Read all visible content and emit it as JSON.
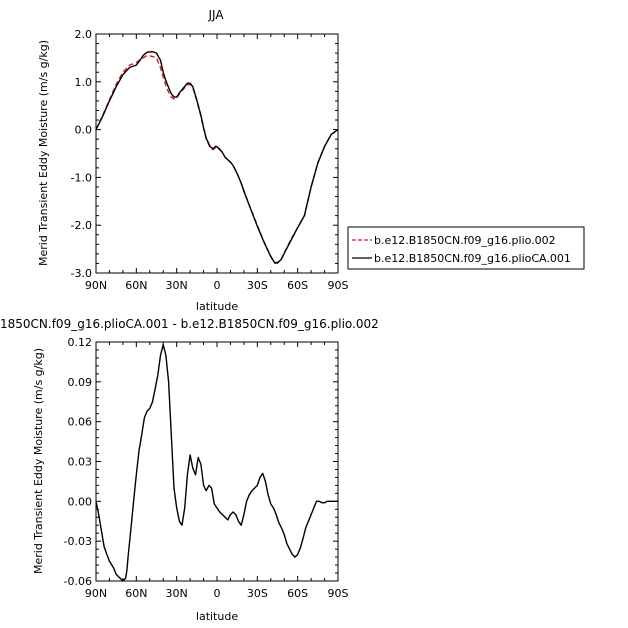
{
  "chart_data": [
    {
      "type": "line",
      "title": "JJA",
      "xlabel": "latitude",
      "ylabel": "Merid Transient Eddy Moisture (m/s g/kg)",
      "xlim": [
        90,
        -90
      ],
      "ylim": [
        -3.0,
        2.0
      ],
      "xticks": [
        90,
        60,
        30,
        0,
        -30,
        -60,
        -90
      ],
      "xtick_labels": [
        "90N",
        "60N",
        "30N",
        "0",
        "30S",
        "60S",
        "90S"
      ],
      "yticks": [
        -3.0,
        -2.0,
        -1.0,
        0.0,
        1.0,
        2.0
      ],
      "ytick_labels": [
        "-3.0",
        "-2.0",
        "-1.0",
        "0.0",
        "1.0",
        "2.0"
      ],
      "legend_position": "right",
      "series": [
        {
          "name": "b.e12.B1850CN.f09_g16.plio.002",
          "color": "#e0141e",
          "dash": "dashed",
          "x": [
            90,
            85,
            80,
            75,
            70,
            65,
            60,
            58,
            55,
            52,
            48,
            45,
            42,
            40,
            38,
            36,
            34,
            32,
            30,
            28,
            25,
            22,
            20,
            18,
            15,
            12,
            10,
            8,
            5,
            3,
            1,
            0,
            -2,
            -4,
            -6,
            -8,
            -10,
            -12,
            -15,
            -18,
            -20,
            -25,
            -30,
            -35,
            -40,
            -43,
            -45,
            -48,
            -50,
            -55,
            -60,
            -65,
            -70,
            -75,
            -80,
            -85,
            -90
          ],
          "y": [
            0.0,
            0.3,
            0.62,
            0.95,
            1.2,
            1.35,
            1.4,
            1.45,
            1.5,
            1.55,
            1.53,
            1.5,
            1.3,
            1.1,
            0.92,
            0.78,
            0.68,
            0.64,
            0.66,
            0.75,
            0.85,
            0.93,
            0.95,
            0.88,
            0.6,
            0.28,
            0.02,
            -0.2,
            -0.38,
            -0.42,
            -0.37,
            -0.37,
            -0.42,
            -0.48,
            -0.58,
            -0.63,
            -0.68,
            -0.75,
            -0.92,
            -1.12,
            -1.28,
            -1.65,
            -2.0,
            -2.35,
            -2.65,
            -2.78,
            -2.78,
            -2.7,
            -2.58,
            -2.3,
            -2.05,
            -1.8,
            -1.2,
            -0.7,
            -0.35,
            -0.1,
            0.0
          ]
        },
        {
          "name": "b.e12.B1850CN.f09_g16.plioCA.001",
          "color": "#000000",
          "dash": "solid",
          "x": [
            90,
            85,
            80,
            75,
            70,
            65,
            60,
            58,
            55,
            52,
            48,
            45,
            42,
            40,
            38,
            36,
            34,
            32,
            30,
            28,
            25,
            22,
            20,
            18,
            15,
            12,
            10,
            8,
            5,
            3,
            1,
            0,
            -2,
            -4,
            -6,
            -8,
            -10,
            -12,
            -15,
            -18,
            -20,
            -25,
            -30,
            -35,
            -40,
            -43,
            -45,
            -48,
            -50,
            -55,
            -60,
            -65,
            -70,
            -75,
            -80,
            -85,
            -90
          ],
          "y": [
            0.0,
            0.28,
            0.6,
            0.9,
            1.15,
            1.3,
            1.35,
            1.42,
            1.55,
            1.62,
            1.63,
            1.6,
            1.45,
            1.2,
            1.02,
            0.88,
            0.75,
            0.68,
            0.68,
            0.77,
            0.87,
            0.97,
            0.97,
            0.9,
            0.62,
            0.3,
            0.04,
            -0.18,
            -0.36,
            -0.4,
            -0.35,
            -0.36,
            -0.41,
            -0.48,
            -0.58,
            -0.63,
            -0.68,
            -0.75,
            -0.92,
            -1.12,
            -1.29,
            -1.66,
            -2.02,
            -2.36,
            -2.66,
            -2.79,
            -2.79,
            -2.71,
            -2.59,
            -2.32,
            -2.05,
            -1.8,
            -1.2,
            -0.7,
            -0.35,
            -0.1,
            0.0
          ]
        }
      ]
    },
    {
      "type": "line",
      "title": "1850CN.f09_g16.plioCA.001 - b.e12.B1850CN.f09_g16.plio.002",
      "xlabel": "latitude",
      "ylabel": "Merid Transient Eddy Moisture (m/s g/kg)",
      "xlim": [
        90,
        -90
      ],
      "ylim": [
        -0.06,
        0.12
      ],
      "xticks": [
        90,
        60,
        30,
        0,
        -30,
        -60,
        -90
      ],
      "xtick_labels": [
        "90N",
        "60N",
        "30N",
        "0",
        "30S",
        "60S",
        "90S"
      ],
      "yticks": [
        -0.06,
        -0.03,
        0.0,
        0.03,
        0.06,
        0.09,
        0.12
      ],
      "ytick_labels": [
        "-0.06",
        "-0.03",
        "0.00",
        "0.03",
        "0.06",
        "0.09",
        "0.12"
      ],
      "series": [
        {
          "color": "#000000",
          "dash": "solid",
          "x": [
            90,
            88,
            86,
            84,
            82,
            80,
            77,
            75,
            72,
            70,
            68,
            67,
            66,
            64,
            62,
            60,
            58,
            56,
            54,
            52,
            50,
            48,
            46,
            44,
            42,
            40,
            38,
            36,
            34,
            32,
            30,
            28,
            26,
            24,
            22,
            20,
            18,
            16,
            14,
            12,
            10,
            8,
            6,
            4,
            2,
            0,
            -2,
            -4,
            -6,
            -8,
            -10,
            -12,
            -14,
            -16,
            -18,
            -20,
            -22,
            -24,
            -26,
            -28,
            -30,
            -32,
            -34,
            -36,
            -38,
            -40,
            -42,
            -44,
            -46,
            -48,
            -50,
            -52,
            -54,
            -56,
            -58,
            -60,
            -62,
            -64,
            -66,
            -68,
            -70,
            -72,
            -74,
            -76,
            -78,
            -80,
            -82,
            -84,
            -86,
            -88,
            -90
          ],
          "y": [
            0.0,
            -0.01,
            -0.022,
            -0.034,
            -0.04,
            -0.045,
            -0.05,
            -0.055,
            -0.058,
            -0.06,
            -0.058,
            -0.052,
            -0.04,
            -0.02,
            0.0,
            0.02,
            0.038,
            0.05,
            0.063,
            0.068,
            0.07,
            0.075,
            0.085,
            0.095,
            0.11,
            0.118,
            0.11,
            0.09,
            0.05,
            0.01,
            -0.005,
            -0.015,
            -0.018,
            -0.005,
            0.02,
            0.035,
            0.025,
            0.02,
            0.033,
            0.028,
            0.012,
            0.008,
            0.012,
            0.01,
            -0.002,
            -0.005,
            -0.008,
            -0.01,
            -0.012,
            -0.014,
            -0.01,
            -0.008,
            -0.01,
            -0.015,
            -0.018,
            -0.01,
            0.0,
            0.005,
            0.008,
            0.01,
            0.012,
            0.018,
            0.021,
            0.015,
            0.005,
            -0.002,
            -0.005,
            -0.01,
            -0.016,
            -0.02,
            -0.025,
            -0.032,
            -0.036,
            -0.04,
            -0.042,
            -0.04,
            -0.035,
            -0.028,
            -0.02,
            -0.015,
            -0.01,
            -0.005,
            0.0,
            0.0,
            -0.001,
            -0.001,
            0.0,
            0.0,
            0.0,
            0.0,
            0.0
          ]
        }
      ]
    }
  ]
}
